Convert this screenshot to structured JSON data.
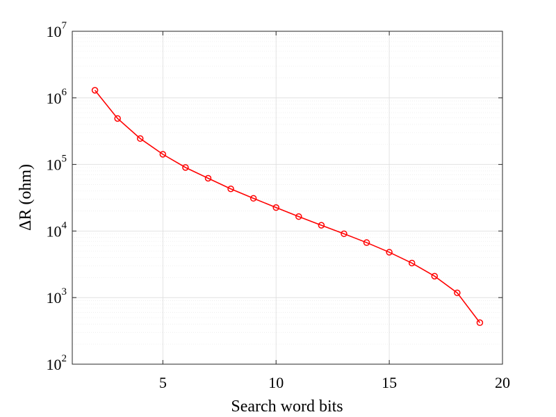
{
  "chart_data": {
    "type": "line",
    "title": "",
    "xlabel": "Search word bits",
    "ylabel": "ΔR (ohm)",
    "xlim": [
      1,
      20
    ],
    "ylim": [
      100,
      10000000
    ],
    "yscale": "log",
    "grid": true,
    "minor_grid": true,
    "legend": "none",
    "x_ticks": [
      5,
      10,
      15,
      20
    ],
    "y_ticks": [
      {
        "value": 100,
        "base": "10",
        "exp": "2"
      },
      {
        "value": 1000,
        "base": "10",
        "exp": "3"
      },
      {
        "value": 10000,
        "base": "10",
        "exp": "4"
      },
      {
        "value": 100000,
        "base": "10",
        "exp": "5"
      },
      {
        "value": 1000000,
        "base": "10",
        "exp": "6"
      },
      {
        "value": 10000000,
        "base": "10",
        "exp": "7"
      }
    ],
    "series": [
      {
        "color": "#ff0000",
        "marker": "circle",
        "x": [
          2,
          3,
          4,
          5,
          6,
          7,
          8,
          9,
          10,
          11,
          12,
          13,
          14,
          15,
          16,
          17,
          18,
          19
        ],
        "y": [
          1300000,
          490000,
          245000,
          142000,
          90000,
          62000,
          43000,
          31000,
          22500,
          16500,
          12200,
          9100,
          6700,
          4800,
          3300,
          2100,
          1180,
          420
        ]
      }
    ]
  }
}
